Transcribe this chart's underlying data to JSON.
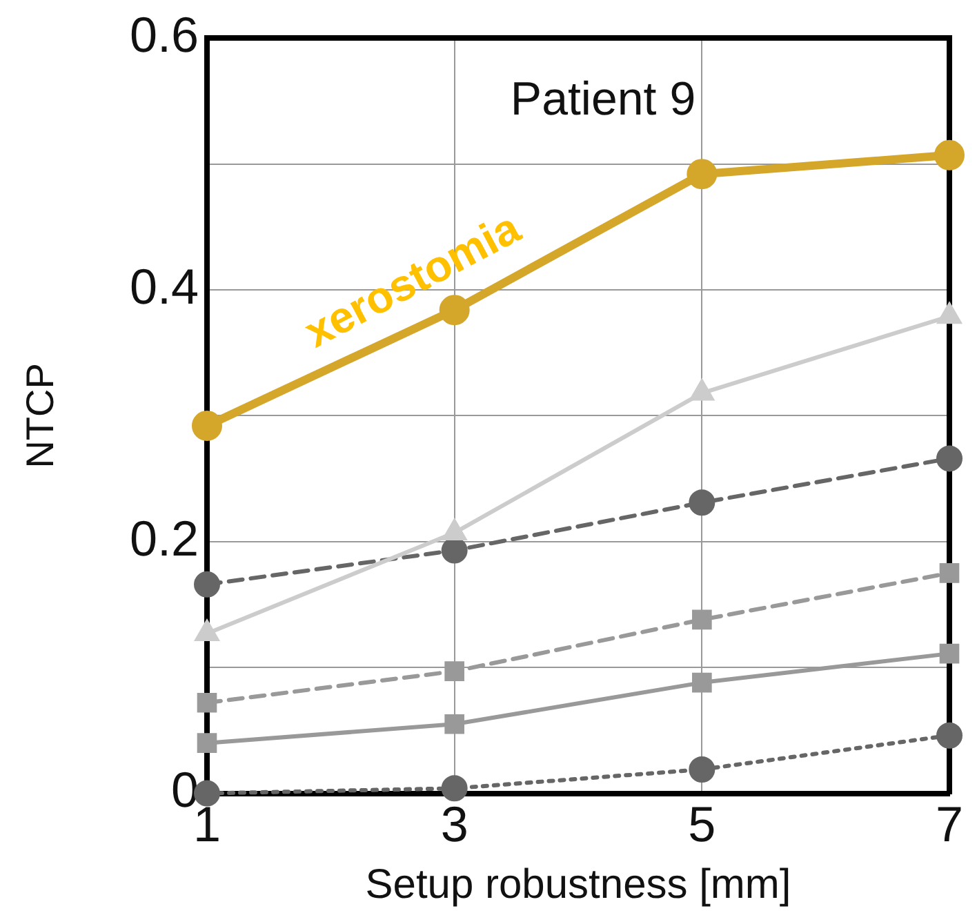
{
  "chart_data": {
    "type": "line",
    "title": "Patient 9",
    "xlabel": "Setup robustness [mm]",
    "ylabel": "NTCP",
    "x": [
      1,
      3,
      5,
      7
    ],
    "xlim": [
      1,
      7
    ],
    "xticks": [
      1,
      3,
      5,
      7
    ],
    "ylim": [
      0,
      0.6
    ],
    "yticks": [
      0,
      {
        "value": 0.1,
        "label": null
      },
      0.2,
      {
        "value": 0.3,
        "label": null
      },
      0.4,
      {
        "value": 0.5,
        "label": null
      },
      0.6
    ],
    "grid": true,
    "legend": false,
    "series": [
      {
        "name": "xerostomia",
        "color": "#d4a62a",
        "marker": "circle",
        "line_style": "solid",
        "values": [
          0.292,
          0.384,
          0.492,
          0.507
        ]
      },
      {
        "color": "#cccccc",
        "marker": "triangle",
        "line_style": "solid",
        "values": [
          0.127,
          0.207,
          0.318,
          0.379
        ]
      },
      {
        "color": "#666666",
        "marker": "circle",
        "line_style": "dashed",
        "values": [
          0.166,
          0.193,
          0.231,
          0.266
        ]
      },
      {
        "color": "#999999",
        "marker": "square",
        "line_style": "dashed",
        "values": [
          0.072,
          0.097,
          0.138,
          0.175
        ]
      },
      {
        "color": "#999999",
        "marker": "square",
        "line_style": "solid",
        "values": [
          0.04,
          0.055,
          0.088,
          0.111
        ]
      },
      {
        "color": "#666666",
        "marker": "circle",
        "line_style": "dotted",
        "values": [
          0,
          0.004,
          0.019,
          0.046
        ]
      }
    ]
  }
}
